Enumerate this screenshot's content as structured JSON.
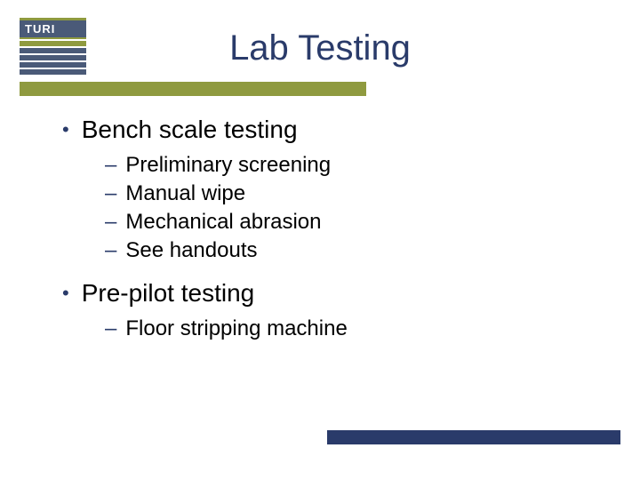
{
  "colors": {
    "navy": "#2a3b6a",
    "slate": "#4a5a78",
    "olive": "#8f9a3f",
    "white": "#ffffff",
    "black": "#000000"
  },
  "logo": {
    "text": "TURI",
    "stripe_colors": [
      "#8f9a3f",
      "#4a5a78",
      "#4a5a78",
      "#4a5a78",
      "#4a5a78"
    ]
  },
  "title": "Lab Testing",
  "sections": [
    {
      "label": "Bench scale testing",
      "items": [
        "Preliminary screening",
        "Manual wipe",
        "Mechanical abrasion",
        "See handouts"
      ]
    },
    {
      "label": "Pre-pilot testing",
      "items": [
        "Floor stripping machine"
      ]
    }
  ]
}
